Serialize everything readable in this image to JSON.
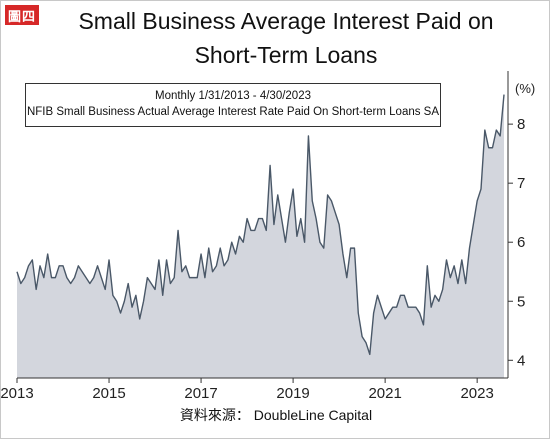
{
  "badge": "圖四",
  "title_line1": "Small Business Average Interest Paid on",
  "title_line2": "Short-Term Loans",
  "source": "資料來源： DoubleLine Capital",
  "chart_data": {
    "type": "area",
    "period_label": "Monthly 1/31/2013 - 4/30/2023",
    "series_label": "NFIB Small Business Actual Average Interest Rate Paid On Short-term Loans SA",
    "unit": "(%)",
    "x_start": "2013-01",
    "x_end": "2023-04",
    "x_ticks": [
      "2013",
      "2015",
      "2017",
      "2019",
      "2021",
      "2023"
    ],
    "y_ticks": [
      4,
      5,
      6,
      7,
      8
    ],
    "ylim": [
      3.7,
      8.9
    ],
    "fill_color": "#d3d6dd",
    "line_color": "#4a5868",
    "values": [
      5.5,
      5.3,
      5.4,
      5.6,
      5.7,
      5.2,
      5.6,
      5.4,
      5.8,
      5.4,
      5.4,
      5.6,
      5.6,
      5.4,
      5.3,
      5.4,
      5.6,
      5.5,
      5.4,
      5.3,
      5.4,
      5.6,
      5.4,
      5.2,
      5.7,
      5.1,
      5.0,
      4.8,
      5.0,
      5.3,
      4.9,
      5.1,
      4.7,
      5.0,
      5.4,
      5.3,
      5.2,
      5.7,
      5.1,
      5.7,
      5.3,
      5.4,
      6.2,
      5.5,
      5.6,
      5.4,
      5.4,
      5.4,
      5.8,
      5.4,
      5.9,
      5.5,
      5.6,
      5.9,
      5.6,
      5.7,
      6.0,
      5.8,
      6.1,
      6.0,
      6.4,
      6.2,
      6.2,
      6.4,
      6.4,
      6.2,
      7.3,
      6.3,
      6.8,
      6.4,
      6.0,
      6.5,
      6.9,
      6.1,
      6.4,
      6.0,
      7.8,
      6.7,
      6.4,
      6.0,
      5.9,
      6.8,
      6.7,
      6.5,
      6.3,
      5.8,
      5.4,
      5.9,
      5.9,
      4.8,
      4.4,
      4.3,
      4.1,
      4.8,
      5.1,
      4.9,
      4.7,
      4.8,
      4.9,
      4.9,
      5.1,
      5.1,
      4.9,
      4.9,
      4.9,
      4.8,
      4.6,
      5.6,
      4.9,
      5.1,
      5.0,
      5.2,
      5.7,
      5.4,
      5.6,
      5.3,
      5.7,
      5.3,
      5.9,
      6.3,
      6.7,
      6.9,
      7.9,
      7.6,
      7.6,
      7.9,
      7.8,
      8.5
    ]
  }
}
